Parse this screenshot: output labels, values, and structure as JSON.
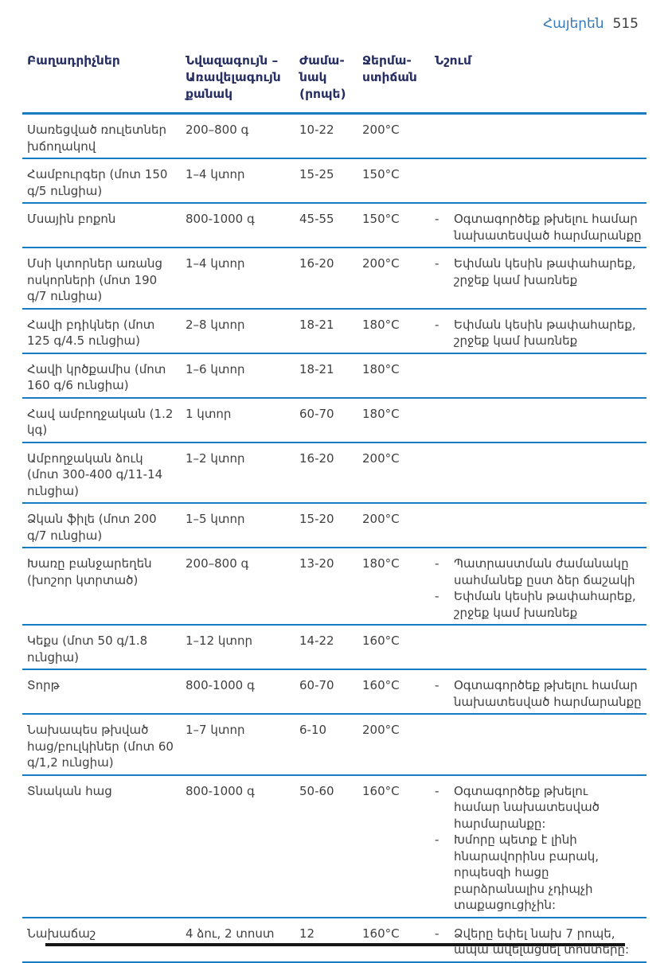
{
  "page_header": {
    "language": "Հայերեն",
    "page_number": "515"
  },
  "colors": {
    "accent_blue": "#177CC1",
    "header_navy": "#262E63",
    "link_blue": "#3478B9",
    "text_gray": "#3F3F3F"
  },
  "table": {
    "note_bullet": "-",
    "columns": {
      "ingredients": "Բաղադրիչներ",
      "quantity": "Նվազագույն –\nԱռավելագույն\nքանակ",
      "time": "Ժամա-\nնակ\n(րոպե)",
      "temperature": "Ջերմա-\nստիճան",
      "note": "Նշում"
    },
    "rows": [
      {
        "ingredient": "Սառեցված ռուլետներ խճողակով",
        "quantity": "200–800 գ",
        "time": "10-22",
        "temperature": "200°C",
        "notes": []
      },
      {
        "ingredient": "Համբուրգեր (մոտ 150 գ/5 ունցիա)",
        "quantity": "1–4 կտոր",
        "time": "15-25",
        "temperature": "150°C",
        "notes": []
      },
      {
        "ingredient": "Մսային բոքոն",
        "quantity": "800-1000 գ",
        "time": "45-55",
        "temperature": "150°C",
        "notes": [
          "Օգտագործեք թխելու համար նախատեսված հարմարանքը"
        ]
      },
      {
        "ingredient": "Մսի կտորներ առանց ոսկորների (մոտ 190 գ/7 ունցիա)",
        "quantity": "1–4 կտոր",
        "time": "16-20",
        "temperature": "200°C",
        "notes": [
          "Եփման կեսին թափահարեք, շրջեք կամ խառնեք"
        ]
      },
      {
        "ingredient": "Հավի բդիկներ (մոտ 125 գ/4.5 ունցիա)",
        "quantity": "2–8 կտոր",
        "time": "18-21",
        "temperature": "180°C",
        "notes": [
          "Եփման կեսին թափահարեք, շրջեք կամ խառնեք"
        ]
      },
      {
        "ingredient": "Հավի կրծքամիս (մոտ 160 գ/6 ունցիա)",
        "quantity": "1–6 կտոր",
        "time": "18-21",
        "temperature": "180°C",
        "notes": []
      },
      {
        "ingredient": "Հավ ամբողջական (1.2 կգ)",
        "quantity": "1 կտոր",
        "time": "60-70",
        "temperature": "180°C",
        "notes": []
      },
      {
        "ingredient": "Ամբողջական ձուկ (մոտ 300-400 գ/11-14 ունցիա)",
        "quantity": "1–2 կտոր",
        "time": "16-20",
        "temperature": "200°C",
        "notes": []
      },
      {
        "ingredient": "Ձկան ֆիլե (մոտ 200 գ/7 ունցիա)",
        "quantity": "1–5 կտոր",
        "time": "15-20",
        "temperature": "200°C",
        "notes": []
      },
      {
        "ingredient": "Խառը բանջարեղեն (խոշոր կտրտած)",
        "quantity": "200–800 գ",
        "time": "13-20",
        "temperature": "180°C",
        "notes": [
          "Պատրաստման ժամանակը սահմանեք ըստ ձեր ճաշակի",
          "Եփման կեսին թափահարեք, շրջեք կամ խառնեք"
        ]
      },
      {
        "ingredient": "Կեքս (մոտ 50 գ/1.8 ունցիա)",
        "quantity": "1–12 կտոր",
        "time": "14-22",
        "temperature": "160°C",
        "notes": []
      },
      {
        "ingredient": "Տորթ",
        "quantity": "800-1000 գ",
        "time": "60-70",
        "temperature": "160°C",
        "notes": [
          "Օգտագործեք թխելու համար նախատեսված հարմարանքը"
        ]
      },
      {
        "ingredient": "Նախապես թխված հաց/բուլկիներ (մոտ 60 գ/1,2 ունցիա)",
        "quantity": "1–7 կտոր",
        "time": "6-10",
        "temperature": "200°C",
        "notes": []
      },
      {
        "ingredient": "Տնական հաց",
        "quantity": "800-1000 գ",
        "time": "50-60",
        "temperature": "160°C",
        "notes": [
          "Օգտագործեք թխելու համար նախատեսված հարմարանքը:",
          "Խմորը պետք է լինի հնարավորինս բարակ, որպեսզի հացը բարձրանալիս չդիպչի տաքացուցիչին:"
        ]
      },
      {
        "ingredient": "Նախաճաշ",
        "quantity": "4 ձու, 2 տոստ",
        "time": "12",
        "temperature": "160°C",
        "notes": [
          "Ձվերը եփել նախ 7 րոպե, ապա ավելացնել տոստերը:"
        ]
      }
    ]
  }
}
